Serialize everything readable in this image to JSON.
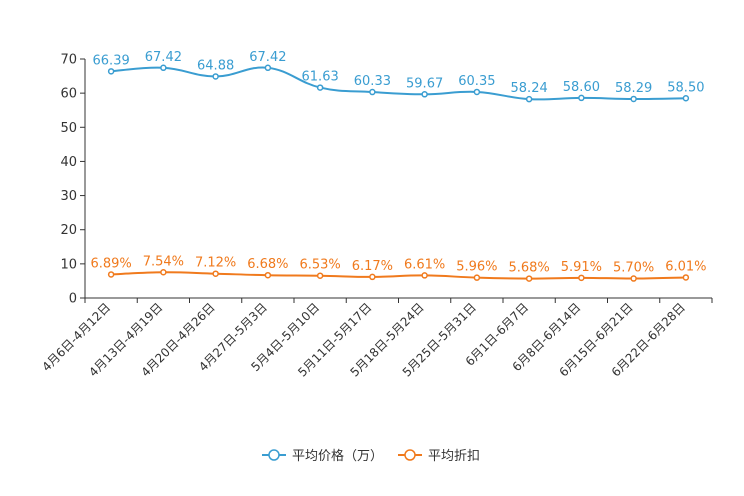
{
  "chart_data": {
    "type": "line",
    "categories": [
      "4月6日-4月12日",
      "4月13日-4月19日",
      "4月20日-4月26日",
      "4月27日-5月3日",
      "5月4日-5月10日",
      "5月11日-5月17日",
      "5月18日-5月24日",
      "5月25日-5月31日",
      "6月1日-6月7日",
      "6月8日-6月14日",
      "6月15日-6月21日",
      "6月22日-6月28日"
    ],
    "series": [
      {
        "name": "平均价格（万）",
        "color": "#3a9dd1",
        "values": [
          66.39,
          67.42,
          64.88,
          67.42,
          61.63,
          60.33,
          59.67,
          60.35,
          58.24,
          58.6,
          58.29,
          58.5
        ],
        "labels": [
          "66.39",
          "67.42",
          "64.88",
          "67.42",
          "61.63",
          "60.33",
          "59.67",
          "60.35",
          "58.24",
          "58.60",
          "58.29",
          "58.50"
        ]
      },
      {
        "name": "平均折扣",
        "color": "#f07a1d",
        "values": [
          6.89,
          7.54,
          7.12,
          6.68,
          6.53,
          6.17,
          6.61,
          5.96,
          5.68,
          5.91,
          5.7,
          6.01
        ],
        "labels": [
          "6.89%",
          "7.54%",
          "7.12%",
          "6.68%",
          "6.53%",
          "6.17%",
          "6.61%",
          "5.96%",
          "5.68%",
          "5.91%",
          "5.70%",
          "6.01%"
        ]
      }
    ],
    "y_ticks": [
      "0",
      "10",
      "20",
      "30",
      "40",
      "50",
      "60",
      "70"
    ],
    "ylim": [
      0,
      70
    ],
    "title": "",
    "xlabel": "",
    "ylabel": "",
    "legend_position": "bottom-center",
    "grid": false
  }
}
